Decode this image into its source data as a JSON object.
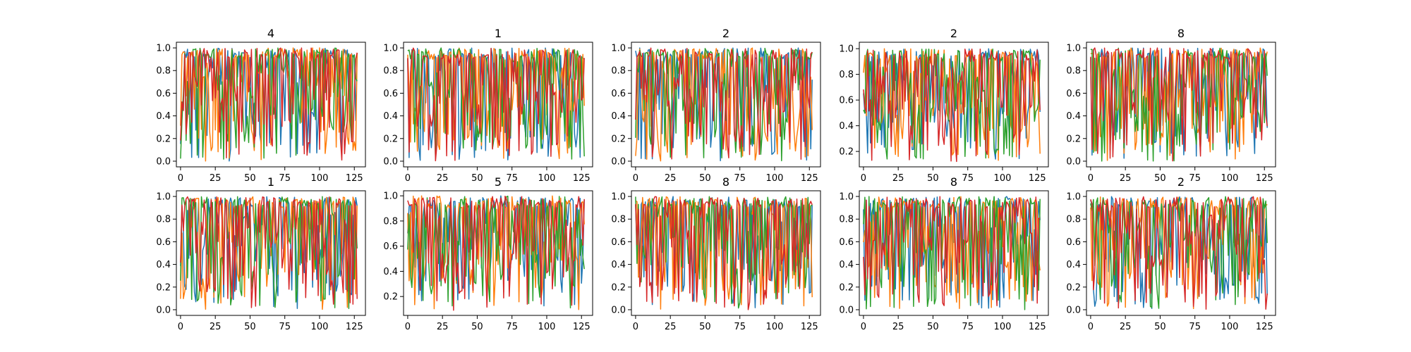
{
  "figure": {
    "colors": {
      "series": [
        "#1f77b4",
        "#ff7f0e",
        "#2ca02c",
        "#d62728"
      ],
      "axis": "#000000",
      "background": "#ffffff"
    }
  },
  "chart_data": [
    {
      "type": "line",
      "title": "4",
      "xlim": [
        -3,
        133
      ],
      "ylim": [
        -0.05,
        1.05
      ],
      "xticks": [
        0,
        25,
        50,
        75,
        100,
        125
      ],
      "yticks": [
        0.0,
        0.2,
        0.4,
        0.6,
        0.8,
        1.0
      ],
      "n_points": 128,
      "series_count": 4,
      "grid": false,
      "legend": "none"
    },
    {
      "type": "line",
      "title": "1",
      "xlim": [
        -3,
        133
      ],
      "ylim": [
        -0.05,
        1.05
      ],
      "xticks": [
        0,
        25,
        50,
        75,
        100,
        125
      ],
      "yticks": [
        0.0,
        0.2,
        0.4,
        0.6,
        0.8,
        1.0
      ],
      "n_points": 128,
      "series_count": 4,
      "grid": false,
      "legend": "none"
    },
    {
      "type": "line",
      "title": "2",
      "xlim": [
        -3,
        133
      ],
      "ylim": [
        -0.05,
        1.05
      ],
      "xticks": [
        0,
        25,
        50,
        75,
        100,
        125
      ],
      "yticks": [
        0.0,
        0.2,
        0.4,
        0.6,
        0.8,
        1.0
      ],
      "n_points": 128,
      "series_count": 4,
      "grid": false,
      "legend": "none"
    },
    {
      "type": "line",
      "title": "2",
      "xlim": [
        -3,
        133
      ],
      "ylim": [
        0.08,
        1.05
      ],
      "xticks": [
        0,
        25,
        50,
        75,
        100,
        125
      ],
      "yticks": [
        0.2,
        0.4,
        0.6,
        0.8,
        1.0
      ],
      "n_points": 128,
      "series_count": 4,
      "grid": false,
      "legend": "none"
    },
    {
      "type": "line",
      "title": "8",
      "xlim": [
        -3,
        133
      ],
      "ylim": [
        -0.05,
        1.05
      ],
      "xticks": [
        0,
        25,
        50,
        75,
        100,
        125
      ],
      "yticks": [
        0.0,
        0.2,
        0.4,
        0.6,
        0.8,
        1.0
      ],
      "n_points": 128,
      "series_count": 4,
      "grid": false,
      "legend": "none"
    },
    {
      "type": "line",
      "title": "1",
      "xlim": [
        -3,
        133
      ],
      "ylim": [
        -0.05,
        1.05
      ],
      "xticks": [
        0,
        25,
        50,
        75,
        100,
        125
      ],
      "yticks": [
        0.0,
        0.2,
        0.4,
        0.6,
        0.8,
        1.0
      ],
      "n_points": 128,
      "series_count": 4,
      "grid": false,
      "legend": "none"
    },
    {
      "type": "line",
      "title": "5",
      "xlim": [
        -3,
        133
      ],
      "ylim": [
        0.05,
        1.04
      ],
      "xticks": [
        0,
        25,
        50,
        75,
        100,
        125
      ],
      "yticks": [
        0.2,
        0.4,
        0.6,
        0.8,
        1.0
      ],
      "n_points": 128,
      "series_count": 4,
      "grid": false,
      "legend": "none"
    },
    {
      "type": "line",
      "title": "8",
      "xlim": [
        -3,
        133
      ],
      "ylim": [
        -0.05,
        1.05
      ],
      "xticks": [
        0,
        25,
        50,
        75,
        100,
        125
      ],
      "yticks": [
        0.0,
        0.2,
        0.4,
        0.6,
        0.8,
        1.0
      ],
      "n_points": 128,
      "series_count": 4,
      "grid": false,
      "legend": "none"
    },
    {
      "type": "line",
      "title": "8",
      "xlim": [
        -3,
        133
      ],
      "ylim": [
        -0.05,
        1.05
      ],
      "xticks": [
        0,
        25,
        50,
        75,
        100,
        125
      ],
      "yticks": [
        0.0,
        0.2,
        0.4,
        0.6,
        0.8,
        1.0
      ],
      "n_points": 128,
      "series_count": 4,
      "grid": false,
      "legend": "none"
    },
    {
      "type": "line",
      "title": "2",
      "xlim": [
        -3,
        133
      ],
      "ylim": [
        -0.05,
        1.05
      ],
      "xticks": [
        0,
        25,
        50,
        75,
        100,
        125
      ],
      "yticks": [
        0.0,
        0.2,
        0.4,
        0.6,
        0.8,
        1.0
      ],
      "n_points": 128,
      "series_count": 4,
      "grid": false,
      "legend": "none"
    }
  ]
}
